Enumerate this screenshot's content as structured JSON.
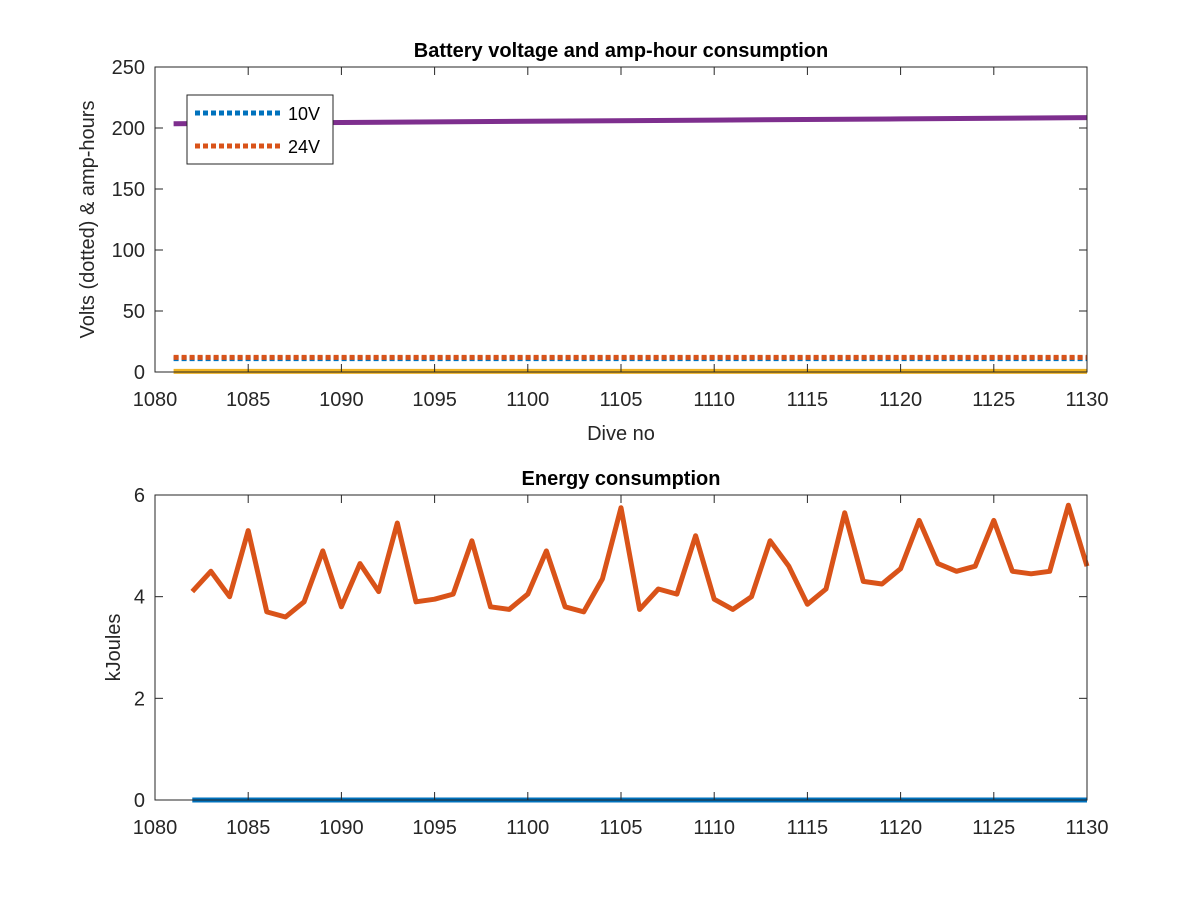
{
  "chart_data": [
    {
      "type": "line",
      "title": "Battery voltage and amp-hour consumption",
      "xlabel": "Dive no",
      "ylabel": "Volts (dotted) & amp-hours",
      "xlim": [
        1080,
        1130
      ],
      "ylim": [
        0,
        250
      ],
      "xticks": [
        1080,
        1085,
        1090,
        1095,
        1100,
        1105,
        1110,
        1115,
        1120,
        1125,
        1130
      ],
      "yticks": [
        0,
        50,
        100,
        150,
        200,
        250
      ],
      "legend_position": "top-left",
      "series": [
        {
          "name": "10V",
          "style": "dotted",
          "color": "#0072BD",
          "x": [
            1081,
            1130
          ],
          "y": [
            11,
            11
          ]
        },
        {
          "name": "24V",
          "style": "dotted",
          "color": "#D95319",
          "x": [
            1081,
            1130
          ],
          "y": [
            12,
            12
          ]
        },
        {
          "style": "solid",
          "color": "#7E2F8E",
          "x": [
            1081,
            1090,
            1100,
            1110,
            1120,
            1130
          ],
          "y": [
            203.5,
            204.5,
            205.5,
            206.5,
            207.5,
            208.5
          ]
        },
        {
          "style": "solid",
          "color": "#EDB120",
          "x": [
            1081,
            1130
          ],
          "y": [
            0.5,
            0.5
          ]
        }
      ]
    },
    {
      "type": "line",
      "title": "Energy consumption",
      "xlabel": "",
      "ylabel": "kJoules",
      "xlim": [
        1080,
        1130
      ],
      "ylim": [
        0,
        6
      ],
      "xticks": [
        1080,
        1085,
        1090,
        1095,
        1100,
        1105,
        1110,
        1115,
        1120,
        1125,
        1130
      ],
      "yticks": [
        0,
        2,
        4,
        6
      ],
      "series": [
        {
          "style": "solid",
          "color": "#0072BD",
          "x": [
            1082,
            1130
          ],
          "y": [
            0,
            0
          ]
        },
        {
          "style": "solid",
          "color": "#D95319",
          "x": [
            1082,
            1083,
            1084,
            1085,
            1086,
            1087,
            1088,
            1089,
            1090,
            1091,
            1092,
            1093,
            1094,
            1095,
            1096,
            1097,
            1098,
            1099,
            1100,
            1101,
            1102,
            1103,
            1104,
            1105,
            1106,
            1107,
            1108,
            1109,
            1110,
            1111,
            1112,
            1113,
            1114,
            1115,
            1116,
            1117,
            1118,
            1119,
            1120,
            1121,
            1122,
            1123,
            1124,
            1125,
            1126,
            1127,
            1128,
            1129,
            1130
          ],
          "y": [
            4.1,
            4.5,
            4.0,
            5.3,
            3.7,
            3.6,
            3.9,
            4.9,
            3.8,
            4.65,
            4.1,
            5.45,
            3.9,
            3.95,
            4.05,
            5.1,
            3.8,
            3.75,
            4.05,
            4.9,
            3.8,
            3.7,
            4.35,
            5.75,
            3.75,
            4.15,
            4.05,
            5.2,
            3.95,
            3.75,
            4.0,
            5.1,
            4.6,
            3.85,
            4.15,
            5.65,
            4.3,
            4.25,
            4.55,
            5.5,
            4.65,
            4.5,
            4.6,
            5.5,
            4.5,
            4.45,
            4.5,
            5.8,
            4.6
          ]
        }
      ]
    }
  ]
}
